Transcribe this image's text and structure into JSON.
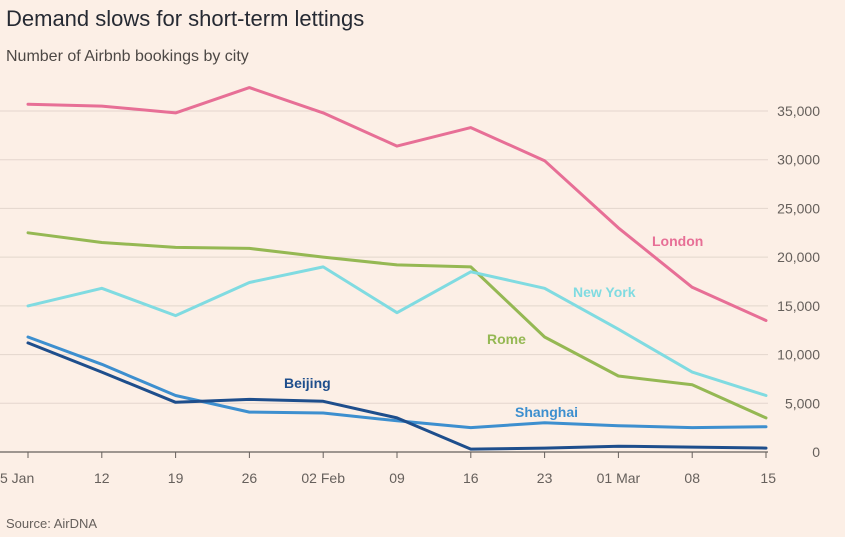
{
  "title": "Demand slows for short-term lettings",
  "subtitle": "Number of Airbnb bookings by city",
  "source": "Source: AirDNA",
  "chart_data": {
    "type": "line",
    "x": [
      "5 Jan",
      "12",
      "19",
      "26",
      "02 Feb",
      "09",
      "16",
      "23",
      "01 Mar",
      "08",
      "15"
    ],
    "ylim": [
      0,
      35000
    ],
    "yticks": [
      0,
      5000,
      10000,
      15000,
      20000,
      25000,
      30000,
      35000
    ],
    "ytick_labels": [
      "0",
      "5,000",
      "10,000",
      "15,000",
      "20,000",
      "25,000",
      "30,000",
      "35,000"
    ],
    "grid": true,
    "y_axis_side": "right",
    "series": [
      {
        "name": "London",
        "color": "#e76f96",
        "values": [
          35700,
          35500,
          34800,
          37400,
          34800,
          31400,
          33300,
          29900,
          23000,
          16900,
          13500
        ]
      },
      {
        "name": "Rome",
        "color": "#95b853",
        "values": [
          22500,
          21500,
          21000,
          20900,
          20000,
          19200,
          19000,
          11800,
          7800,
          6900,
          3500
        ]
      },
      {
        "name": "New York",
        "color": "#80dbe1",
        "values": [
          15000,
          16800,
          14000,
          17400,
          19000,
          14300,
          18500,
          16800,
          12600,
          8200,
          5800
        ]
      },
      {
        "name": "Shanghai",
        "color": "#3d8fcf",
        "values": [
          11800,
          9000,
          5800,
          4100,
          4000,
          3200,
          2500,
          3000,
          2700,
          2500,
          2600
        ]
      },
      {
        "name": "Beijing",
        "color": "#1e4e8c",
        "values": [
          11200,
          8200,
          5100,
          5400,
          5200,
          3500,
          300,
          400,
          600,
          500,
          400
        ]
      }
    ]
  }
}
